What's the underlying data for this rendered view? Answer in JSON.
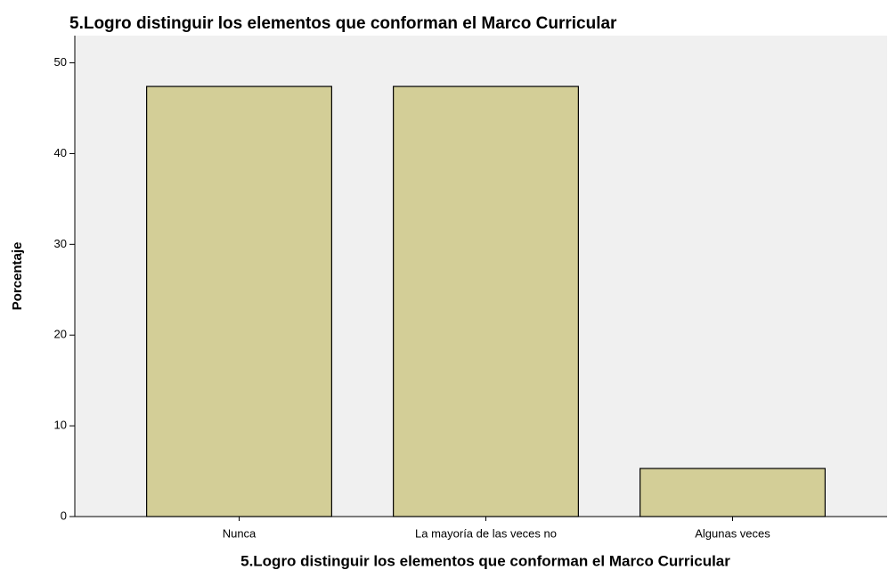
{
  "chart_data": {
    "type": "bar",
    "title": "5.Logro distinguir los elementos que conforman el Marco Curricular",
    "x_label": "5.Logro distinguir los elementos que conforman el Marco Curricular",
    "y_label": "Porcentaje",
    "categories": [
      "Nunca",
      "La mayoría de las veces no",
      "Algunas veces"
    ],
    "values": [
      47.4,
      47.4,
      5.3
    ],
    "color": "#d3ce97",
    "ylim": [
      0,
      53
    ],
    "yticks": [
      0,
      10,
      20,
      30,
      40,
      50
    ],
    "grid": false
  }
}
